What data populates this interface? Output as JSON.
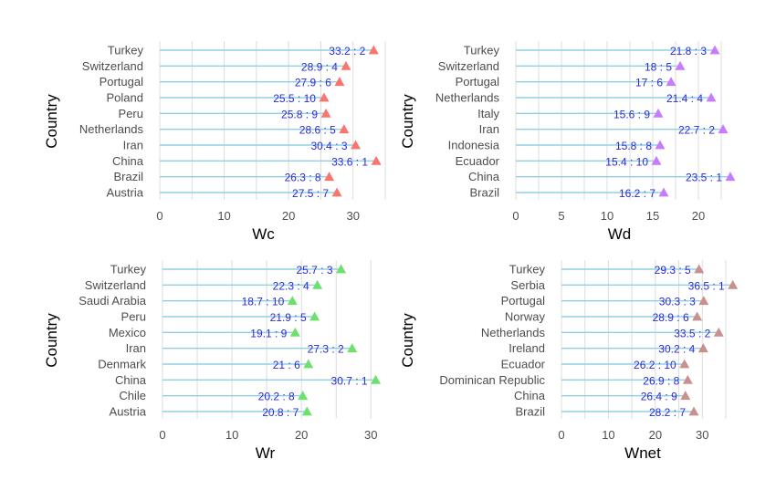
{
  "chart_data": [
    {
      "type": "lollipop",
      "xlabel": "Wc",
      "ylabel": "Country",
      "xlim": [
        0,
        35
      ],
      "xticks": [
        0,
        10,
        20,
        30
      ],
      "grid_step": 5,
      "marker_color": "#F8766D",
      "categories": [
        "Turkey",
        "Switzerland",
        "Portugal",
        "Poland",
        "Peru",
        "Netherlands",
        "Iran",
        "China",
        "Brazil",
        "Austria"
      ],
      "values": [
        33.2,
        28.9,
        27.9,
        25.5,
        25.8,
        28.6,
        30.4,
        33.6,
        26.3,
        27.5
      ],
      "labels": [
        "33.2 : 2",
        "28.9 : 4",
        "27.9 : 6",
        "25.5 : 10",
        "25.8 : 9",
        "28.6 : 5",
        "30.4 : 3",
        "33.6 : 1",
        "26.3 : 8",
        "27.5 : 7"
      ]
    },
    {
      "type": "lollipop",
      "xlabel": "Wd",
      "ylabel": "Country",
      "xlim": [
        0,
        24.7
      ],
      "xticks": [
        0,
        5,
        10,
        15,
        20
      ],
      "grid_step": 2.5,
      "marker_color": "#C77CFF",
      "categories": [
        "Turkey",
        "Switzerland",
        "Portugal",
        "Netherlands",
        "Italy",
        "Iran",
        "Indonesia",
        "Ecuador",
        "China",
        "Brazil"
      ],
      "values": [
        21.8,
        18,
        17,
        21.4,
        15.6,
        22.7,
        15.8,
        15.4,
        23.5,
        16.2
      ],
      "labels": [
        "21.8 : 3",
        "18 : 5",
        "17 : 6",
        "21.4 : 4",
        "15.6 : 9",
        "22.7 : 2",
        "15.8 : 8",
        "15.4 : 10",
        "23.5 : 1",
        "16.2 : 7"
      ]
    },
    {
      "type": "lollipop",
      "xlabel": "Wr",
      "ylabel": "Country",
      "xlim": [
        0,
        32.2
      ],
      "xticks": [
        0,
        10,
        20,
        30
      ],
      "grid_step": 5,
      "marker_color": "#6EE06E",
      "categories": [
        "Turkey",
        "Switzerland",
        "Saudi Arabia",
        "Peru",
        "Mexico",
        "Iran",
        "Denmark",
        "China",
        "Chile",
        "Austria"
      ],
      "values": [
        25.7,
        22.3,
        18.7,
        21.9,
        19.1,
        27.3,
        21,
        30.7,
        20.2,
        20.8
      ],
      "labels": [
        "25.7 : 3",
        "22.3 : 4",
        "18.7 : 10",
        "21.9 : 5",
        "19.1 : 9",
        "27.3 : 2",
        "21 : 6",
        "30.7 : 1",
        "20.2 : 8",
        "20.8 : 7"
      ]
    },
    {
      "type": "lollipop",
      "xlabel": "Wnet",
      "ylabel": "Country",
      "xlim": [
        0,
        38.5
      ],
      "xticks": [
        0,
        10,
        20,
        30
      ],
      "grid_step": 5,
      "marker_color": "#C99090",
      "categories": [
        "Turkey",
        "Serbia",
        "Portugal",
        "Norway",
        "Netherlands",
        "Ireland",
        "Ecuador",
        "Dominican Republic",
        "China",
        "Brazil"
      ],
      "values": [
        29.3,
        36.5,
        30.3,
        28.9,
        33.5,
        30.2,
        26.2,
        26.9,
        26.4,
        28.2
      ],
      "labels": [
        "29.3 : 5",
        "36.5 : 1",
        "30.3 : 3",
        "28.9 : 6",
        "33.5 : 2",
        "30.2 : 4",
        "26.2 : 10",
        "26.9 : 8",
        "26.4 : 9",
        "28.2 : 7"
      ]
    }
  ]
}
